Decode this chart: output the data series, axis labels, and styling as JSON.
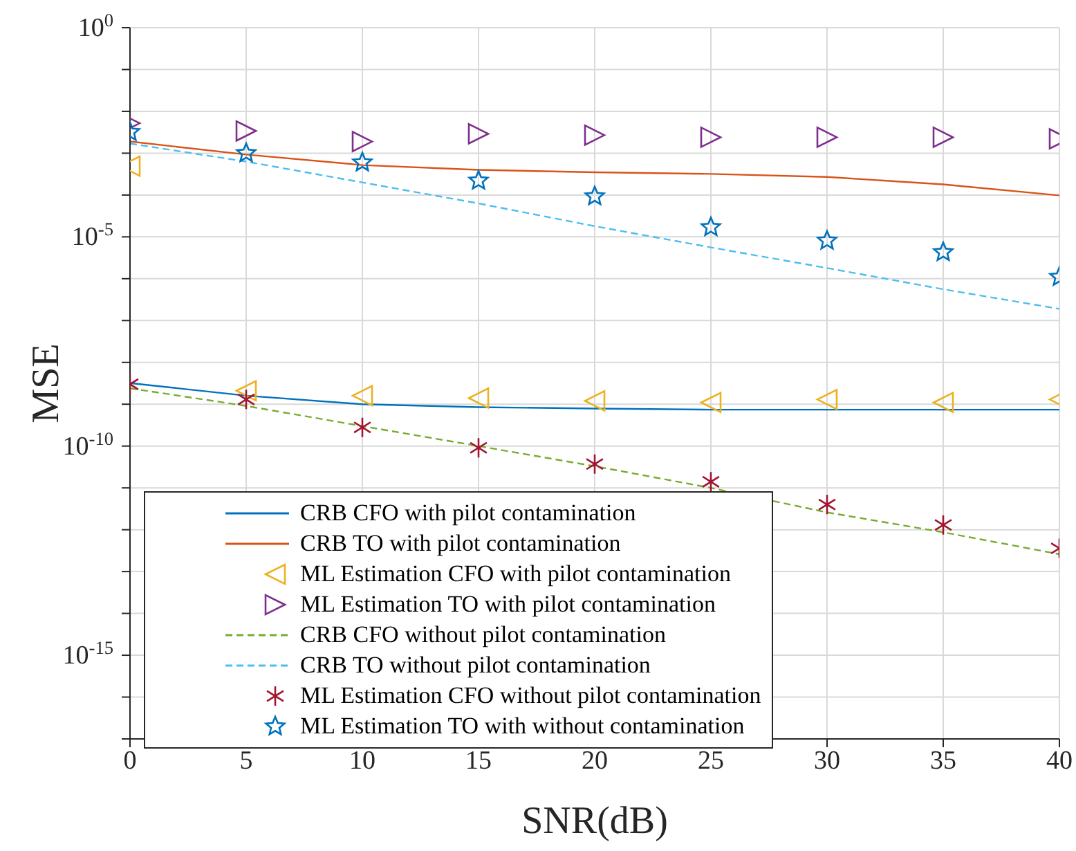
{
  "chart_data": {
    "type": "line",
    "xlabel": "SNR(dB)",
    "ylabel": "MSE",
    "x": [
      0,
      5,
      10,
      15,
      20,
      25,
      30,
      35,
      40
    ],
    "xlim": [
      0,
      40
    ],
    "xticks": [
      0,
      5,
      10,
      15,
      20,
      25,
      30,
      35,
      40
    ],
    "ylim": [
      1e-17,
      1
    ],
    "log": "y",
    "grid": true,
    "legend": "bottom left",
    "yticks": [
      {
        "value": 1,
        "label": "10$^{0}$"
      },
      {
        "value": 0.1,
        "label": null
      },
      {
        "value": 0.01,
        "label": null
      },
      {
        "value": 0.001,
        "label": null
      },
      {
        "value": 0.0001,
        "label": null
      },
      {
        "value": 1e-05,
        "label": "10$^{-5}$"
      },
      {
        "value": 1e-06,
        "label": null
      },
      {
        "value": 1e-07,
        "label": null
      },
      {
        "value": 1e-08,
        "label": null
      },
      {
        "value": 1e-09,
        "label": null
      },
      {
        "value": 1e-10,
        "label": "10$^{-10}$"
      },
      {
        "value": 1e-11,
        "label": null
      },
      {
        "value": 1e-12,
        "label": null
      },
      {
        "value": 1e-13,
        "label": null
      },
      {
        "value": 1e-14,
        "label": null
      },
      {
        "value": 1e-15,
        "label": "10$^{-15}$"
      },
      {
        "value": 1e-16,
        "label": null
      },
      {
        "value": 1e-17,
        "label": null
      }
    ],
    "series": [
      {
        "name": "CRB CFO with pilot contamination",
        "line_style": "solid",
        "color": "#0072bd",
        "values": [
          3.2e-09,
          1.6e-09,
          1e-09,
          8.5e-10,
          7.9e-10,
          7.4e-10,
          7.4e-10,
          7.4e-10,
          7.4e-10
        ]
      },
      {
        "name": "CRB TO with pilot contamination",
        "line_style": "solid",
        "color": "#d95319",
        "values": [
          0.0019,
          0.00093,
          0.00052,
          0.0004,
          0.00035,
          0.00032,
          0.00027,
          0.00018,
          9.8e-05
        ]
      },
      {
        "name": "ML Estimation CFO with pilot contamination",
        "type": "scatter",
        "marker": "triangle-left",
        "color": "#edb120",
        "values": [
          0.00049,
          2.1e-09,
          1.6e-09,
          1.4e-09,
          1.2e-09,
          1.1e-09,
          1.3e-09,
          1.1e-09,
          1.3e-09
        ]
      },
      {
        "name": "ML Estimation TO with pilot contamination",
        "type": "scatter",
        "marker": "triangle-right",
        "color": "#7e2f8e",
        "values": [
          0.0052,
          0.0034,
          0.0019,
          0.0029,
          0.0027,
          0.0024,
          0.0024,
          0.0024,
          0.0022
        ]
      },
      {
        "name": "CRB CFO without pilot contamination",
        "line_style": "dashed",
        "color": "#77ac30",
        "values": [
          2.4e-09,
          9.1e-10,
          3e-10,
          1e-10,
          3.3e-11,
          1e-11,
          2.6e-12,
          8.7e-13,
          2.6e-13
        ]
      },
      {
        "name": "CRB TO without pilot contamination",
        "line_style": "dashed",
        "color": "#4dbeee",
        "values": [
          0.0017,
          0.00063,
          0.0002,
          6.3e-05,
          1.8e-05,
          5.6e-06,
          1.8e-06,
          5.6e-07,
          1.9e-07
        ]
      },
      {
        "name": "ML Estimation CFO without pilot contamination",
        "type": "scatter",
        "marker": "cross",
        "color": "#a2142f",
        "values": [
          3e-09,
          1.3e-09,
          2.8e-10,
          9.1e-11,
          3.7e-11,
          1.4e-11,
          4e-12,
          1.3e-12,
          3.6e-13
        ]
      },
      {
        "name": "ML Estimation TO with without contamination",
        "type": "scatter",
        "marker": "star",
        "color": "#0072bd",
        "values": [
          0.0032,
          0.001,
          0.0006,
          0.00022,
          9.3e-05,
          1.7e-05,
          8.1e-06,
          4.3e-06,
          1.1e-06
        ]
      }
    ]
  }
}
